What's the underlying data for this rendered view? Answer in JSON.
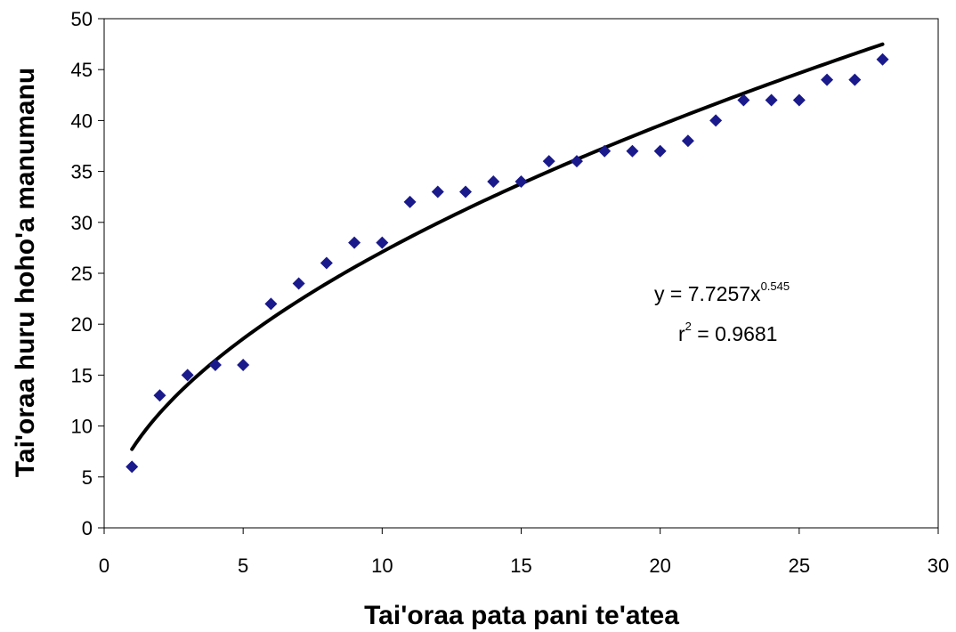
{
  "chart_data": {
    "type": "scatter",
    "xlabel": "Tai'oraa pata pani te'atea",
    "ylabel": "Tai'oraa huru hoho'a manumanu",
    "xlim": [
      0,
      30
    ],
    "ylim": [
      0,
      50
    ],
    "x_ticks": [
      "0",
      "5",
      "10",
      "15",
      "20",
      "25",
      "30"
    ],
    "y_ticks": [
      "0",
      "5",
      "10",
      "15",
      "20",
      "25",
      "30",
      "35",
      "40",
      "45",
      "50"
    ],
    "grid": false,
    "series": [
      {
        "marker": "diamond",
        "color": "#1a1a8c",
        "x": [
          1,
          2,
          3,
          4,
          5,
          6,
          7,
          8,
          9,
          10,
          11,
          12,
          13,
          14,
          15,
          16,
          17,
          18,
          19,
          20,
          21,
          22,
          23,
          24,
          25,
          26,
          27,
          28
        ],
        "y": [
          6,
          13,
          15,
          16,
          16,
          22,
          24,
          26,
          28,
          28,
          32,
          33,
          33,
          34,
          34,
          36,
          36,
          37,
          37,
          37,
          38,
          40,
          42,
          42,
          42,
          44,
          44,
          46
        ]
      }
    ],
    "trendline": {
      "type": "power",
      "coefficient": 7.7257,
      "exponent": 0.545,
      "x_range": [
        1,
        28
      ],
      "color": "#000000"
    },
    "annotation": {
      "equation_prefix": "y = 7.7257x",
      "equation_exponent": "0.545",
      "r2_base": "r",
      "r2_exponent": "2",
      "r2_value": " = 0.9681"
    }
  }
}
